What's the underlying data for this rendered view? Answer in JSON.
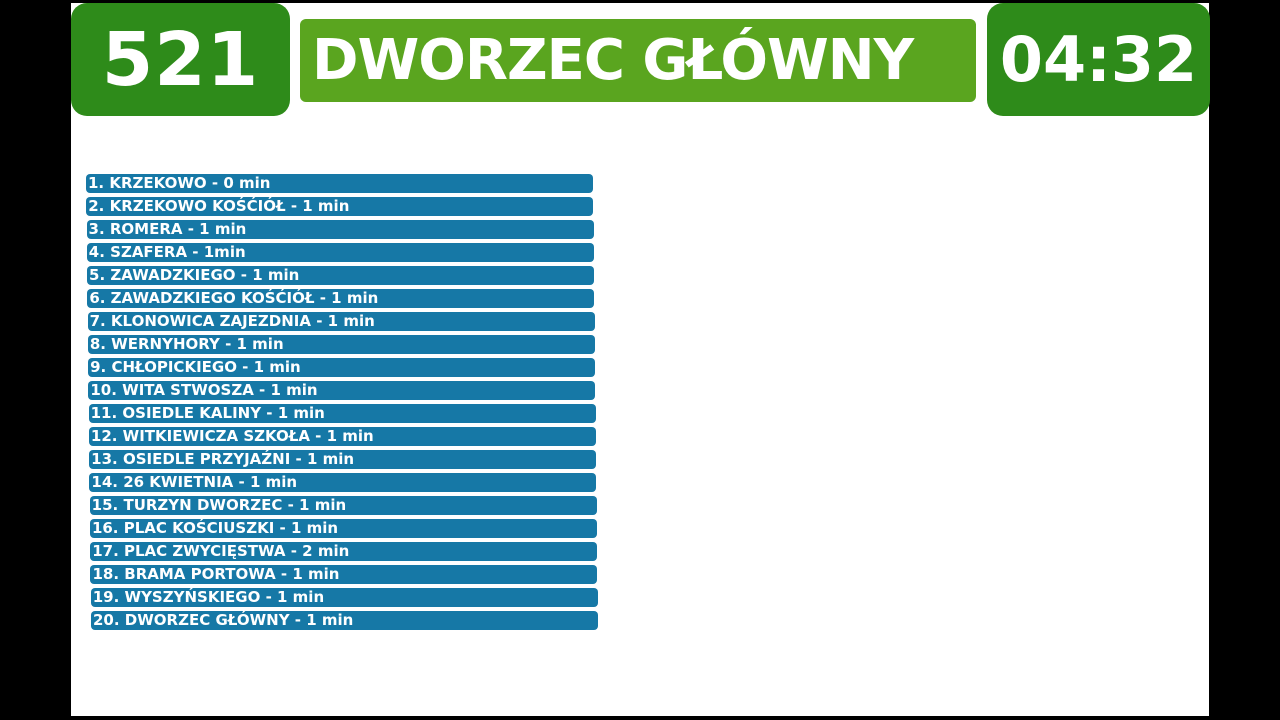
{
  "header": {
    "line_number": "521",
    "destination": "DWORZEC GŁÓWNY",
    "time": "04:32"
  },
  "colors": {
    "line_box": "#2e8b1a",
    "destination_box": "#5aa51f",
    "stop_bar": "#1678a6",
    "text": "#ffffff",
    "background": "#ffffff",
    "border": "#000000"
  },
  "stops": [
    "1. KRZEKOWO - 0 min",
    "2. KRZEKOWO KOŚĆIÓŁ - 1 min",
    "3. ROMERA - 1 min",
    "4. SZAFERA -  1min",
    "5. ZAWADZKIEGO - 1 min",
    "6. ZAWADZKIEGO KOŚĆIÓŁ - 1 min",
    "7. KLONOWICA ZAJEZDNIA -  1 min",
    "8. WERNYHORY - 1 min",
    "9. CHŁOPICKIEGO - 1 min",
    "10. WITA STWOSZA - 1 min",
    "11. OSIEDLE KALINY - 1 min",
    "12. WITKIEWICZA SZKOŁA - 1 min",
    "13. OSIEDLE PRZYJAŹNI - 1 min",
    "14. 26 KWIETNIA - 1 min",
    "15. TURZYN DWORZEC - 1 min",
    "16. PLAC KOŚCIUSZKI - 1 min",
    "17. PLAC ZWYCIĘSTWA - 2 min",
    "18. BRAMA PORTOWA - 1 min",
    "19. WYSZYŃSKIEGO - 1 min",
    "20. DWORZEC GŁÓWNY - 1 min"
  ]
}
